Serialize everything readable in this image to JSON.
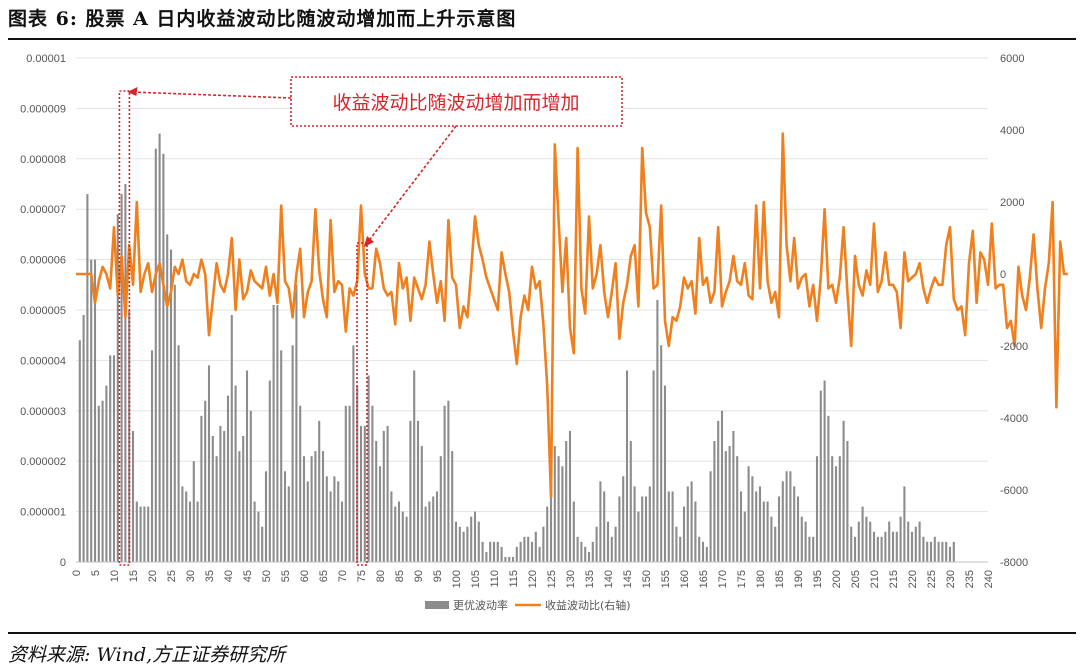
{
  "header": {
    "title": "图表 6:  股票 A 日内收益波动比随波动增加而上升示意图"
  },
  "footer": {
    "source": "资料来源:  Wind,方正证券研究所"
  },
  "chart_data": {
    "type": "bar+line",
    "title": "图表 6:  股票 A 日内收益波动比随波动增加而上升示意图",
    "x_ticks": [
      "0",
      "5",
      "10",
      "15",
      "20",
      "25",
      "30",
      "35",
      "40",
      "45",
      "50",
      "55",
      "60",
      "65",
      "70",
      "75",
      "80",
      "85",
      "90",
      "95",
      "100",
      "105",
      "110",
      "115",
      "120",
      "125",
      "130",
      "135",
      "140",
      "145",
      "150",
      "155",
      "160",
      "165",
      "170",
      "175",
      "180",
      "185",
      "190",
      "195",
      "200",
      "205",
      "210",
      "215",
      "220",
      "225",
      "230",
      "235",
      "240"
    ],
    "y_left": {
      "ylim": [
        0,
        1e-05
      ],
      "ticks": [
        "0",
        "0.000001",
        "0.000002",
        "0.000003",
        "0.000004",
        "0.000005",
        "0.000006",
        "0.000007",
        "0.000008",
        "0.000009",
        "0.00001"
      ]
    },
    "y_right": {
      "ylim": [
        -8000,
        6000
      ],
      "ticks": [
        "6000",
        "4000",
        "2000",
        "0",
        "-2000",
        "-4000",
        "-6000",
        "-8000"
      ]
    },
    "legend_position": "bottom",
    "series": [
      {
        "name": "更优波动率",
        "type": "bar",
        "axis": "left",
        "color": "#8c8c8c",
        "x_start": 1,
        "x_step": 1,
        "values": [
          4.4e-06,
          4.9e-06,
          7.3e-06,
          6e-06,
          6e-06,
          3.1e-06,
          3.2e-06,
          3.5e-06,
          4.1e-06,
          4.1e-06,
          6.9e-06,
          7.3e-06,
          7.5e-06,
          5e-06,
          2.6e-06,
          1.2e-06,
          1.1e-06,
          1.1e-06,
          1.1e-06,
          4.2e-06,
          8.2e-06,
          8.5e-06,
          8.1e-06,
          6.5e-06,
          6.2e-06,
          5.5e-06,
          4.3e-06,
          1.5e-06,
          1.4e-06,
          1.2e-06,
          2e-06,
          1.2e-06,
          2.9e-06,
          3.2e-06,
          3.9e-06,
          2.5e-06,
          2.1e-06,
          2.7e-06,
          2.6e-06,
          3.3e-06,
          4.9e-06,
          3.5e-06,
          2.2e-06,
          2.5e-06,
          3.8e-06,
          3e-06,
          1.2e-06,
          1e-06,
          7e-07,
          1.8e-06,
          3.6e-06,
          5.1e-06,
          5.1e-06,
          4.2e-06,
          1.8e-06,
          1.5e-06,
          4.3e-06,
          5.5e-06,
          3.1e-06,
          2.1e-06,
          1.6e-06,
          2.1e-06,
          2.2e-06,
          2.8e-06,
          2.2e-06,
          1.7e-06,
          1.4e-06,
          1.7e-06,
          1.6e-06,
          1.2e-06,
          3.1e-06,
          3.1e-06,
          4.3e-06,
          3.5e-06,
          2.7e-06,
          2.7e-06,
          3.7e-06,
          3.1e-06,
          2.4e-06,
          1.9e-06,
          2.6e-06,
          2.7e-06,
          1.4e-06,
          1.1e-06,
          1.2e-06,
          1e-06,
          9e-07,
          2.8e-06,
          3.8e-06,
          2.8e-06,
          2.3e-06,
          1.1e-06,
          1.2e-06,
          1.3e-06,
          1.4e-06,
          2.1e-06,
          3.1e-06,
          3.2e-06,
          2.2e-06,
          8e-07,
          7e-07,
          6e-07,
          7e-07,
          9e-07,
          1e-06,
          8e-07,
          4e-07,
          2e-07,
          4e-07,
          4e-07,
          4e-07,
          3e-07,
          1e-07,
          1e-07,
          1e-07,
          3e-07,
          4e-07,
          5e-07,
          5e-07,
          4e-07,
          6e-07,
          3e-07,
          7e-07,
          1.1e-06,
          1.7e-06,
          2.3e-06,
          2.1e-06,
          1.9e-06,
          2.4e-06,
          2.6e-06,
          1.2e-06,
          5e-07,
          4e-07,
          3e-07,
          2e-07,
          4e-07,
          7e-07,
          1.6e-06,
          1.4e-06,
          8e-07,
          5e-07,
          7e-07,
          1.3e-06,
          1.7e-06,
          3.8e-06,
          2.4e-06,
          1.5e-06,
          1e-06,
          1.3e-06,
          1.3e-06,
          1.5e-06,
          3.8e-06,
          5.2e-06,
          4.3e-06,
          3.5e-06,
          1.4e-06,
          1.4e-06,
          7e-07,
          5e-07,
          1.1e-06,
          1.5e-06,
          1.6e-06,
          1.2e-06,
          5e-07,
          4e-07,
          3e-07,
          1.8e-06,
          2.4e-06,
          2.8e-06,
          3e-06,
          2.2e-06,
          2.3e-06,
          2.6e-06,
          2.1e-06,
          1.4e-06,
          1e-06,
          1.9e-06,
          1.7e-06,
          1.4e-06,
          1.5e-06,
          1.2e-06,
          1.2e-06,
          9e-07,
          7e-07,
          1.3e-06,
          1.6e-06,
          1.8e-06,
          1.8e-06,
          1.5e-06,
          1.3e-06,
          9e-07,
          8e-07,
          5e-07,
          5e-07,
          2.1e-06,
          3.4e-06,
          3.6e-06,
          2.9e-06,
          2.1e-06,
          1.9e-06,
          2.1e-06,
          2.8e-06,
          2.4e-06,
          7e-07,
          5e-07,
          8e-07,
          1.1e-06,
          9e-07,
          8e-07,
          6e-07,
          5e-07,
          5e-07,
          6e-07,
          8e-07,
          6e-07,
          6e-07,
          9e-07,
          1.5e-06,
          8e-07,
          6e-07,
          7e-07,
          8e-07,
          5e-07,
          4e-07,
          4e-07,
          5e-07,
          4e-07,
          4e-07,
          4e-07,
          3e-07,
          4e-07
        ]
      },
      {
        "name": "收益波动比(右轴)",
        "type": "line",
        "axis": "right",
        "color": "#f07f1e",
        "x_start": 0,
        "x_step": 1,
        "values": [
          0,
          0,
          0,
          0,
          0,
          -800,
          -200,
          200,
          0,
          -400,
          1300,
          -600,
          500,
          -1200,
          800,
          -300,
          2000,
          -500,
          0,
          300,
          -500,
          0,
          300,
          -300,
          -900,
          -500,
          200,
          0,
          400,
          -200,
          -300,
          0,
          -100,
          400,
          0,
          -1700,
          -700,
          300,
          -300,
          -500,
          0,
          1000,
          -1000,
          400,
          -700,
          -500,
          100,
          -200,
          -300,
          -400,
          200,
          -600,
          0,
          -800,
          1900,
          -200,
          -400,
          -1200,
          0,
          700,
          -1200,
          -500,
          -200,
          1800,
          100,
          -700,
          -1200,
          1500,
          -500,
          -200,
          -300,
          -1600,
          -400,
          -600,
          -200,
          1900,
          0,
          -400,
          -400,
          700,
          300,
          -400,
          -600,
          -500,
          -1400,
          300,
          -400,
          -100,
          -1300,
          -100,
          -400,
          -700,
          -300,
          900,
          0,
          -800,
          -200,
          -1300,
          1500,
          -100,
          -300,
          -1500,
          -900,
          -1200,
          100,
          1600,
          800,
          400,
          -100,
          -400,
          -700,
          -1000,
          600,
          0,
          -500,
          -1600,
          -2500,
          -1200,
          -600,
          -1000,
          200,
          -400,
          -200,
          -1400,
          -3100,
          -6200,
          3600,
          1500,
          -500,
          1000,
          -1500,
          -2200,
          3500,
          -400,
          -1100,
          1600,
          -400,
          0,
          800,
          -500,
          -1200,
          -500,
          300,
          -1800,
          -800,
          -300,
          500,
          800,
          -900,
          3500,
          1700,
          1300,
          -400,
          -300,
          1900,
          -1300,
          -2000,
          -1200,
          -1300,
          -900,
          -100,
          -400,
          -200,
          -1100,
          1000,
          -300,
          -100,
          -800,
          -500,
          1300,
          -900,
          -500,
          -200,
          500,
          -200,
          -300,
          300,
          -600,
          -700,
          1900,
          -400,
          2000,
          -200,
          -800,
          -500,
          -1200,
          3900,
          800,
          -200,
          1000,
          -400,
          -100,
          0,
          -900,
          -300,
          -1300,
          -100,
          1800,
          -400,
          -300,
          -800,
          -100,
          1300,
          -500,
          -2000,
          500,
          -300,
          -600,
          100,
          -300,
          1400,
          -500,
          -200,
          600,
          -300,
          -300,
          -500,
          -1500,
          600,
          -200,
          -100,
          0,
          300,
          -400,
          -800,
          -400,
          -100,
          -300,
          -300,
          800,
          1300,
          -700,
          -1000,
          -900,
          -1700,
          300,
          1200,
          -800,
          600,
          400,
          -300,
          1400,
          -400,
          -300,
          -300,
          -1500,
          -1300,
          -2000,
          200,
          -600,
          -1000,
          -100,
          1100,
          -400,
          -1500,
          -400,
          300,
          2000,
          -3700,
          900,
          0,
          0
        ]
      }
    ],
    "annotation": {
      "text": "收益波动比随波动增加而增加",
      "color": "#d9242b"
    }
  }
}
